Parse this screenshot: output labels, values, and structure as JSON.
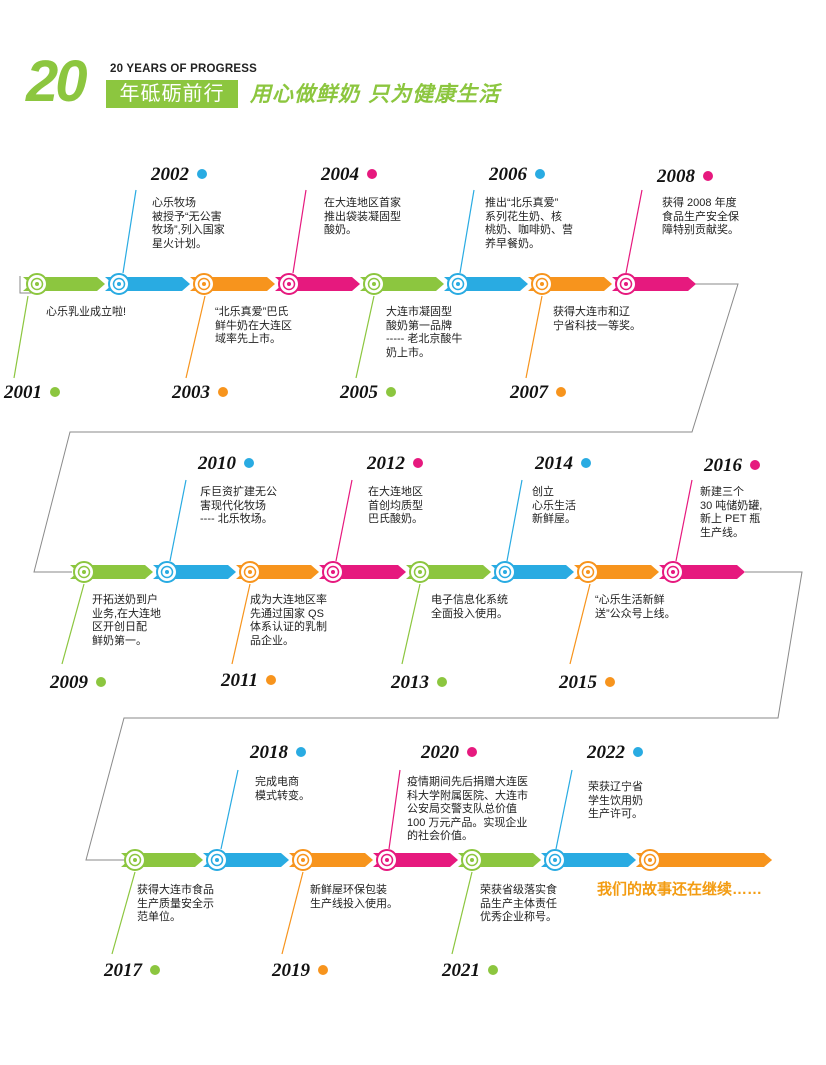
{
  "header": {
    "big_number": "20",
    "subtitle_en": "20 YEARS OF PROGRESS",
    "subtitle_cn": "年砥砺前行",
    "slogan": "用心做鲜奶  只为健康生活"
  },
  "colors": {
    "green": "#8cc63f",
    "blue": "#29abe2",
    "orange": "#f7941d",
    "pink": "#e6197e",
    "connector": "#8a8a8a"
  },
  "events": [
    {
      "year": "2001",
      "color": "green",
      "text": "心乐乳业成立啦!"
    },
    {
      "year": "2002",
      "color": "blue",
      "text": "心乐牧场\n被授予“无公害\n牧场”,列入国家\n星火计划。"
    },
    {
      "year": "2003",
      "color": "orange",
      "text": "“北乐真爱”巴氏\n鲜牛奶在大连区\n域率先上市。"
    },
    {
      "year": "2004",
      "color": "pink",
      "text": "在大连地区首家\n推出袋装凝固型\n酸奶。"
    },
    {
      "year": "2005",
      "color": "green",
      "text": "大连市凝固型\n酸奶第一品牌\n----- 老北京酸牛\n奶上市。"
    },
    {
      "year": "2006",
      "color": "blue",
      "text": "推出“北乐真爱”\n系列花生奶、核\n桃奶、咖啡奶、营\n养早餐奶。"
    },
    {
      "year": "2007",
      "color": "orange",
      "text": "获得大连市和辽\n宁省科技一等奖。"
    },
    {
      "year": "2008",
      "color": "pink",
      "text": "获得 2008 年度\n食品生产安全保\n障特别贡献奖。"
    },
    {
      "year": "2009",
      "color": "green",
      "text": "开拓送奶到户\n业务,在大连地\n区开创日配\n鲜奶第一。"
    },
    {
      "year": "2010",
      "color": "blue",
      "text": "斥巨资扩建无公\n害现代化牧场\n---- 北乐牧场。"
    },
    {
      "year": "2011",
      "color": "orange",
      "text": "成为大连地区率\n先通过国家 QS\n体系认证的乳制\n品企业。"
    },
    {
      "year": "2012",
      "color": "pink",
      "text": "在大连地区\n首创均质型\n巴氏酸奶。"
    },
    {
      "year": "2013",
      "color": "green",
      "text": "电子信息化系统\n全面投入使用。"
    },
    {
      "year": "2014",
      "color": "blue",
      "text": "创立\n心乐生活\n新鲜屋。"
    },
    {
      "year": "2015",
      "color": "orange",
      "text": "“心乐生活新鲜\n送”公众号上线。"
    },
    {
      "year": "2016",
      "color": "pink",
      "text": "新建三个\n30 吨储奶罐,\n新上 PET 瓶\n生产线。"
    },
    {
      "year": "2017",
      "color": "green",
      "text": "获得大连市食品\n生产质量安全示\n范单位。"
    },
    {
      "year": "2018",
      "color": "blue",
      "text": "完成电商\n模式转变。"
    },
    {
      "year": "2019",
      "color": "orange",
      "text": "新鲜屋环保包装\n生产线投入使用。"
    },
    {
      "year": "2020",
      "color": "pink",
      "text": "疫情期间先后捐赠大连医\n科大学附属医院、大连市\n公安局交警支队总价值\n100 万元产品。实现企业\n的社会价值。"
    },
    {
      "year": "2021",
      "color": "green",
      "text": "荣获省级落实食\n品生产主体责任\n优秀企业称号。"
    },
    {
      "year": "2022",
      "color": "blue",
      "text": "荣获辽宁省\n学生饮用奶\n生产许可。"
    }
  ],
  "ending": "我们的故事还在继续……"
}
